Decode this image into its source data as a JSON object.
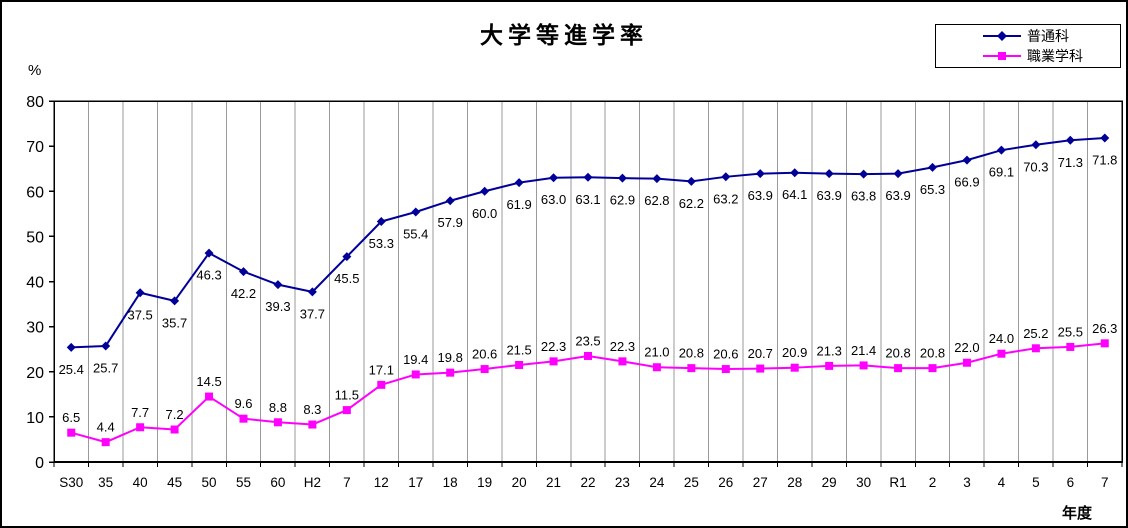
{
  "chart_data": {
    "type": "line",
    "title": "大学等進学率",
    "xlabel": "年度",
    "ylabel": "%",
    "ylim": [
      0,
      80
    ],
    "y_ticks": [
      0,
      10,
      20,
      30,
      40,
      50,
      60,
      70,
      80
    ],
    "grid": "vertical-only",
    "legend_position": "top-right",
    "categories": [
      "S30",
      "35",
      "40",
      "45",
      "50",
      "55",
      "60",
      "H2",
      "7",
      "12",
      "17",
      "18",
      "19",
      "20",
      "21",
      "22",
      "23",
      "24",
      "25",
      "26",
      "27",
      "28",
      "29",
      "30",
      "R1",
      "2",
      "3",
      "4",
      "5",
      "6",
      "7"
    ],
    "series": [
      {
        "name": "普通科",
        "color": "#000099",
        "marker": "diamond",
        "label_position": "below",
        "values": [
          25.4,
          25.7,
          37.5,
          35.7,
          46.3,
          42.2,
          39.3,
          37.7,
          45.5,
          53.3,
          55.4,
          57.9,
          60.0,
          61.9,
          63.0,
          63.1,
          62.9,
          62.8,
          62.2,
          63.2,
          63.9,
          64.1,
          63.9,
          63.8,
          63.9,
          65.3,
          66.9,
          69.1,
          70.3,
          71.3,
          71.8
        ]
      },
      {
        "name": "職業学科",
        "color": "#FF00FF",
        "marker": "square",
        "label_position": "above",
        "values": [
          6.5,
          4.4,
          7.7,
          7.2,
          14.5,
          9.6,
          8.8,
          8.3,
          11.5,
          17.1,
          19.4,
          19.8,
          20.6,
          21.5,
          22.3,
          23.5,
          22.3,
          21.0,
          20.8,
          20.6,
          20.7,
          20.9,
          21.3,
          21.4,
          20.8,
          20.8,
          22.0,
          24.0,
          25.2,
          25.5,
          26.3
        ]
      }
    ],
    "colors": {
      "grid": "#9a9a9a",
      "axis": "#000000",
      "label_text": "#000000"
    }
  }
}
